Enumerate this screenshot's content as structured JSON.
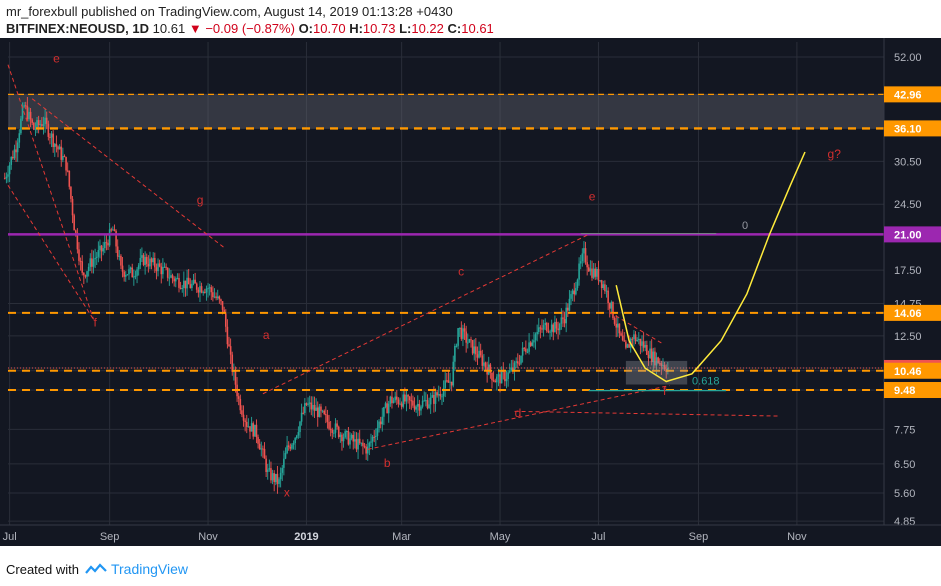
{
  "header": {
    "user": "mr_forexbull",
    "published_text": "published on TradingView.com, August 14, 2019 01:13:28 +0430",
    "symbol": "BITFINEX:NEOUSD, 1D",
    "last": "10.61",
    "change": "−0.09 (−0.87%)",
    "o_label": "O:",
    "o_value": "10.70",
    "h_label": "H:",
    "h_value": "10.73",
    "l_label": "L:",
    "l_value": "10.22",
    "c_label": "C:",
    "c_value": "10.61"
  },
  "footer": {
    "created_with": "Created with",
    "brand": "TradingView"
  },
  "colors": {
    "bg": "#131722",
    "up": "#26a69a",
    "down": "#ef5350",
    "orange": "#ff9800",
    "purple": "#9c27b0",
    "annot": "#d32f2f",
    "curve": "#ffeb3b"
  },
  "chart_data": {
    "type": "candlestick",
    "scale": "log",
    "x_ticks": [
      "Jul",
      "Sep",
      "Nov",
      "2019",
      "Mar",
      "May",
      "Jul",
      "Sep",
      "Nov"
    ],
    "y_ticks": [
      "52.00",
      "42.96",
      "36.10",
      "30.50",
      "24.50",
      "21.00",
      "17.50",
      "14.75",
      "14.06",
      "12.50",
      "10.61",
      "10.46",
      "9.48",
      "7.75",
      "6.50",
      "5.60",
      "4.85"
    ],
    "ylim": [
      4.85,
      52.0
    ],
    "grid": true,
    "levels": [
      {
        "value": 42.96,
        "label": "42.96",
        "color": "#ff9800"
      },
      {
        "value": 36.1,
        "label": "36.10",
        "color": "#ff9800"
      },
      {
        "value": 21.0,
        "label": "21.00",
        "color": "#9c27b0"
      },
      {
        "value": 14.06,
        "label": "14.06",
        "color": "#ff9800"
      },
      {
        "value": 10.61,
        "label": "10.61",
        "color": "#ef5350"
      },
      {
        "value": 10.46,
        "label": "10.46",
        "color": "#ff9800"
      },
      {
        "value": 9.48,
        "label": "9.48",
        "color": "#ff9800"
      }
    ],
    "price_path": [
      [
        "2018-06-28",
        28.0
      ],
      [
        "2018-07-05",
        33.0
      ],
      [
        "2018-07-10",
        40.5
      ],
      [
        "2018-07-16",
        36.0
      ],
      [
        "2018-07-22",
        37.5
      ],
      [
        "2018-07-28",
        34.0
      ],
      [
        "2018-08-05",
        30.0
      ],
      [
        "2018-08-10",
        22.0
      ],
      [
        "2018-08-15",
        17.0
      ],
      [
        "2018-08-22",
        18.5
      ],
      [
        "2018-08-28",
        19.5
      ],
      [
        "2018-09-03",
        21.5
      ],
      [
        "2018-09-08",
        17.5
      ],
      [
        "2018-09-15",
        17.2
      ],
      [
        "2018-09-22",
        18.5
      ],
      [
        "2018-10-01",
        17.8
      ],
      [
        "2018-10-10",
        16.8
      ],
      [
        "2018-10-20",
        16.2
      ],
      [
        "2018-11-01",
        16.0
      ],
      [
        "2018-11-10",
        14.5
      ],
      [
        "2018-11-15",
        11.0
      ],
      [
        "2018-11-20",
        9.0
      ],
      [
        "2018-11-25",
        8.0
      ],
      [
        "2018-12-01",
        7.6
      ],
      [
        "2018-12-08",
        6.2
      ],
      [
        "2018-12-15",
        5.9
      ],
      [
        "2018-12-20",
        7.0
      ],
      [
        "2018-12-25",
        7.5
      ],
      [
        "2019-01-01",
        8.8
      ],
      [
        "2019-01-08",
        8.5
      ],
      [
        "2019-01-15",
        8.0
      ],
      [
        "2019-01-22",
        7.6
      ],
      [
        "2019-02-01",
        7.2
      ],
      [
        "2019-02-08",
        7.0
      ],
      [
        "2019-02-15",
        8.0
      ],
      [
        "2019-02-22",
        9.0
      ],
      [
        "2019-03-01",
        9.0
      ],
      [
        "2019-03-10",
        8.8
      ],
      [
        "2019-03-20",
        9.0
      ],
      [
        "2019-04-01",
        10.0
      ],
      [
        "2019-04-05",
        13.0
      ],
      [
        "2019-04-12",
        12.0
      ],
      [
        "2019-04-20",
        11.0
      ],
      [
        "2019-04-28",
        10.0
      ],
      [
        "2019-05-05",
        10.2
      ],
      [
        "2019-05-10",
        10.6
      ],
      [
        "2019-05-15",
        11.5
      ],
      [
        "2019-05-22",
        12.5
      ],
      [
        "2019-05-30",
        13.2
      ],
      [
        "2019-06-05",
        13.0
      ],
      [
        "2019-06-10",
        13.8
      ],
      [
        "2019-06-15",
        15.5
      ],
      [
        "2019-06-22",
        19.0
      ],
      [
        "2019-06-26",
        17.5
      ],
      [
        "2019-07-01",
        17.0
      ],
      [
        "2019-07-05",
        16.0
      ],
      [
        "2019-07-10",
        14.0
      ],
      [
        "2019-07-14",
        12.5
      ],
      [
        "2019-07-18",
        11.5
      ],
      [
        "2019-07-22",
        12.5
      ],
      [
        "2019-07-28",
        12.0
      ],
      [
        "2019-08-04",
        11.2
      ],
      [
        "2019-08-09",
        10.9
      ],
      [
        "2019-08-13",
        10.61
      ]
    ],
    "annotations": [
      {
        "text": "e",
        "date": "2018-07-28",
        "price": 50.5
      },
      {
        "text": "g",
        "date": "2018-10-25",
        "price": 24.5
      },
      {
        "text": "f",
        "date": "2018-08-22",
        "price": 13.1
      },
      {
        "text": "a",
        "date": "2018-12-05",
        "price": 12.3
      },
      {
        "text": "c",
        "date": "2019-04-05",
        "price": 17.0
      },
      {
        "text": "e",
        "date": "2019-06-25",
        "price": 25.0
      },
      {
        "text": "b",
        "date": "2019-02-18",
        "price": 6.4
      },
      {
        "text": "x",
        "date": "2018-12-18",
        "price": 5.5
      },
      {
        "text": "d",
        "date": "2019-05-10",
        "price": 8.25
      },
      {
        "text": "f",
        "date": "2019-08-10",
        "price": 9.25
      },
      {
        "text": "g?",
        "date": "2019-11-20",
        "price": 31.0
      }
    ],
    "curve_label": "0.618",
    "zero_label": "0"
  }
}
